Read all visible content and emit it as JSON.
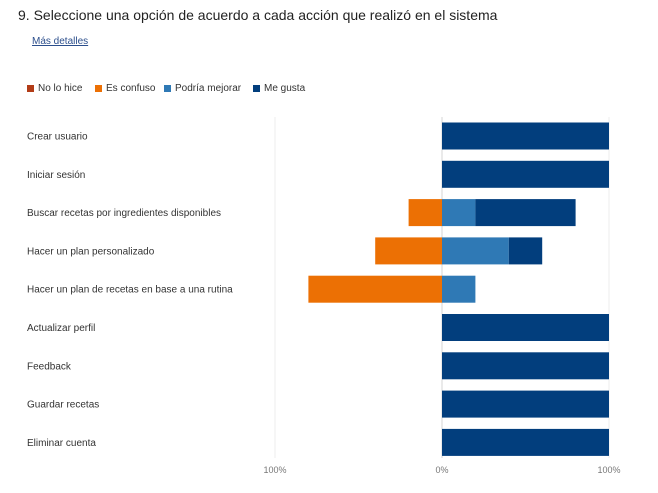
{
  "question": {
    "title": "9.  Seleccione una opción de acuerdo a cada acción que realizó en el sistema",
    "details_link": "Más detalles"
  },
  "colors": {
    "no_lo_hice": "#b23c17",
    "es_confuso": "#ec7004",
    "podria_mejorar": "#2f79b5",
    "me_gusta": "#023e7d"
  },
  "chart_data": {
    "type": "bar",
    "orientation": "horizontal",
    "stacked": "diverging",
    "categories": [
      "Crear usuario",
      "Iniciar sesión",
      "Buscar recetas por ingredientes disponibles",
      "Hacer un plan personalizado",
      "Hacer un plan de recetas en base a una rutina",
      "Actualizar perfil",
      "Feedback",
      "Guardar recetas",
      "Eliminar cuenta"
    ],
    "series": [
      {
        "name": "No lo hice",
        "color": "#b23c17",
        "side": "negative",
        "values": [
          0,
          0,
          0,
          0,
          0,
          0,
          0,
          0,
          0
        ]
      },
      {
        "name": "Es confuso",
        "color": "#ec7004",
        "side": "negative",
        "values": [
          0,
          0,
          20,
          40,
          80,
          0,
          0,
          0,
          0
        ]
      },
      {
        "name": "Podría mejorar",
        "color": "#2f79b5",
        "side": "positive",
        "values": [
          0,
          0,
          20,
          40,
          20,
          0,
          0,
          0,
          0
        ]
      },
      {
        "name": "Me gusta",
        "color": "#023e7d",
        "side": "positive",
        "values": [
          100,
          100,
          60,
          20,
          0,
          100,
          100,
          100,
          100
        ]
      }
    ],
    "xlim": [
      -100,
      100
    ],
    "tick_labels": [
      "100%",
      "0%",
      "100%"
    ],
    "legend_position": "top-left",
    "grid": true
  }
}
